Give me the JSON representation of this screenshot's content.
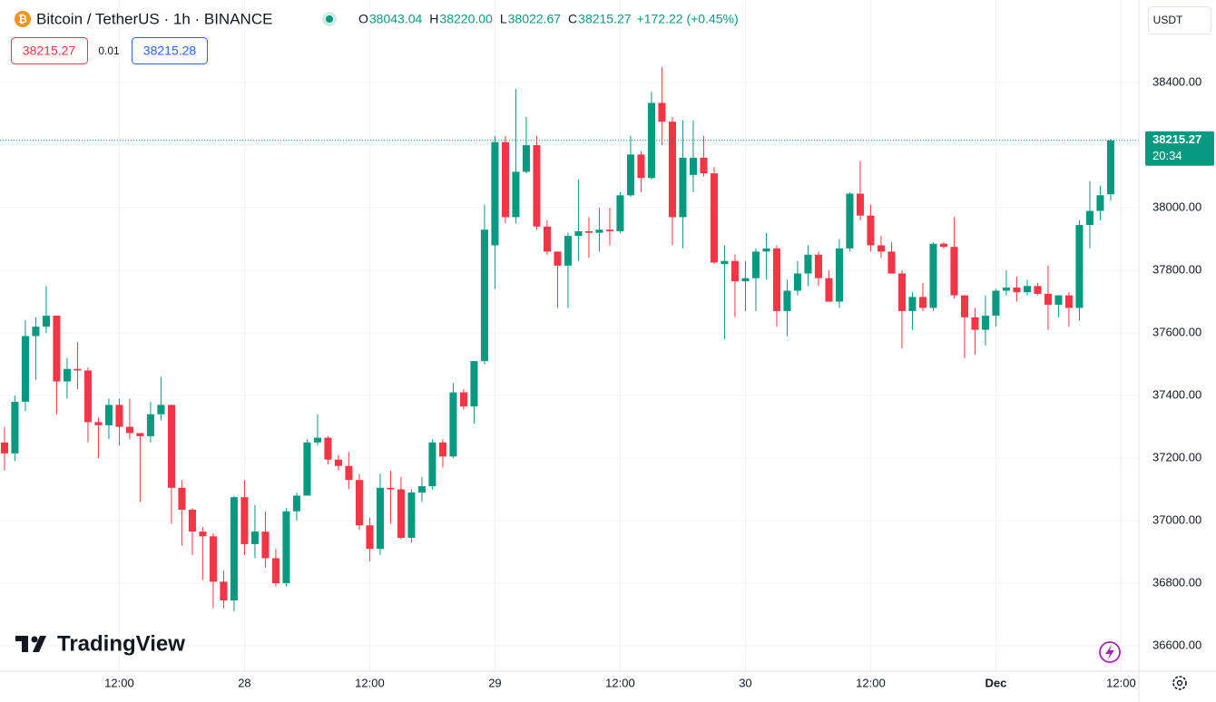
{
  "chart_data": {
    "type": "candlestick",
    "title": "Bitcoin / TetherUS · 1h · BINANCE",
    "legend": [
      {
        "label": "O",
        "value": "38043.04"
      },
      {
        "label": "H",
        "value": "38220.00"
      },
      {
        "label": "L",
        "value": "38022.67"
      },
      {
        "label": "C",
        "value": "38215.27"
      }
    ],
    "change": "+172.22 (+0.45%)",
    "sell_price": "38215.27",
    "spread": "0.01",
    "buy_price": "38215.28",
    "currency": "USDT",
    "last_price": 38215.27,
    "countdown": "20:34",
    "logo": "TradingView",
    "up_color": "#089981",
    "down_color": "#f23645",
    "grid": true,
    "xlim": [
      -0.43,
      108.7
    ],
    "xticks": [
      {
        "value": 11,
        "label": "12:00"
      },
      {
        "value": 23,
        "label": "28"
      },
      {
        "value": 35,
        "label": "12:00"
      },
      {
        "value": 47,
        "label": "29"
      },
      {
        "value": 59,
        "label": "12:00"
      },
      {
        "value": 71,
        "label": "30"
      },
      {
        "value": 83,
        "label": "12:00"
      },
      {
        "value": 95,
        "label": "Dec"
      },
      {
        "value": 107,
        "label": "12:00"
      }
    ],
    "ylim": [
      36519,
      38664
    ],
    "yticks": [
      {
        "value": 36600,
        "label": "36600.00"
      },
      {
        "value": 36800,
        "label": "36800.00"
      },
      {
        "value": 37000,
        "label": "37000.00"
      },
      {
        "value": 37200,
        "label": "37200.00"
      },
      {
        "value": 37400,
        "label": "37400.00"
      },
      {
        "value": 37600,
        "label": "37600.00"
      },
      {
        "value": 37800,
        "label": "37800.00"
      },
      {
        "value": 38000,
        "label": "38000.00"
      },
      {
        "value": 38200,
        "label": "38200.00"
      },
      {
        "value": 38400,
        "label": "38400.00"
      }
    ],
    "open": [
      37250,
      37215,
      37380,
      37590,
      37620,
      37655,
      37445,
      37485,
      37480,
      37315,
      37305,
      37370,
      37300,
      37280,
      37270,
      37340,
      37370,
      37105,
      37035,
      36965,
      36950,
      36805,
      36745,
      37075,
      36925,
      36965,
      36880,
      36800,
      37030,
      37080,
      37250,
      37265,
      37195,
      37175,
      37130,
      36985,
      36910,
      37105,
      37100,
      36945,
      37090,
      37110,
      37250,
      37205,
      37410,
      37365,
      37510,
      37880,
      38210,
      37970,
      38115,
      38200,
      37940,
      37860,
      37815,
      37910,
      37925,
      37920,
      37930,
      37925,
      38040,
      38170,
      38095,
      38335,
      38275,
      37970,
      38105,
      38160,
      38110,
      37820,
      37830,
      37765,
      37775,
      37860,
      37870,
      37670,
      37735,
      37790,
      37850,
      37775,
      37700,
      37870,
      38045,
      37975,
      37880,
      37860,
      37790,
      37670,
      37715,
      37680,
      37885,
      37875,
      37720,
      37650,
      37610,
      37655,
      37735,
      37745,
      37730,
      37750,
      37725,
      37690,
      37720,
      37680,
      37945,
      37990,
      38043.04
    ],
    "high": [
      37300,
      37400,
      37640,
      37650,
      37750,
      37655,
      37520,
      37570,
      37490,
      37330,
      37390,
      37390,
      37390,
      37280,
      37380,
      37460,
      37370,
      37130,
      37040,
      36980,
      36960,
      36840,
      37080,
      37130,
      37050,
      37030,
      36910,
      37040,
      37090,
      37260,
      37340,
      37270,
      37210,
      37220,
      37150,
      37010,
      37150,
      37160,
      37140,
      37100,
      37140,
      37260,
      37260,
      37440,
      37420,
      37510,
      38010,
      38230,
      38230,
      38380,
      38290,
      38230,
      37960,
      37860,
      37920,
      38090,
      37970,
      38000,
      38000,
      38050,
      38230,
      38180,
      38370,
      38450,
      38290,
      38280,
      38280,
      38230,
      38130,
      37880,
      37850,
      37830,
      37870,
      37920,
      37880,
      37770,
      37830,
      37880,
      37860,
      37800,
      37900,
      38050,
      38150,
      38010,
      37910,
      37890,
      37800,
      37730,
      37760,
      37890,
      37890,
      37970,
      37720,
      37680,
      37720,
      37740,
      37800,
      37780,
      37770,
      37760,
      37815,
      37720,
      37730,
      37960,
      38085,
      38070,
      38220
    ],
    "low": [
      37160,
      37190,
      37350,
      37450,
      37600,
      37340,
      37390,
      37420,
      37250,
      37200,
      37260,
      37240,
      37260,
      37060,
      37250,
      37320,
      36990,
      36920,
      36890,
      36810,
      36720,
      36720,
      36710,
      36890,
      36880,
      36850,
      36790,
      36790,
      37000,
      37080,
      37240,
      37180,
      37160,
      37100,
      36970,
      36870,
      36890,
      36990,
      36940,
      36930,
      37060,
      37100,
      37170,
      37200,
      37355,
      37310,
      37500,
      37740,
      37950,
      37950,
      38110,
      37930,
      37850,
      37680,
      37680,
      37830,
      37840,
      37860,
      37880,
      37920,
      38035,
      38050,
      38090,
      38200,
      37880,
      37870,
      38050,
      38100,
      37820,
      37580,
      37650,
      37670,
      37670,
      37770,
      37620,
      37590,
      37720,
      37750,
      37750,
      37700,
      37680,
      37860,
      37960,
      37860,
      37840,
      37790,
      37550,
      37610,
      37670,
      37670,
      37870,
      37710,
      37520,
      37530,
      37560,
      37620,
      37720,
      37700,
      37720,
      37720,
      37610,
      37650,
      37620,
      37640,
      37870,
      37960,
      38022.67
    ],
    "close": [
      37215,
      37380,
      37590,
      37620,
      37655,
      37445,
      37485,
      37480,
      37315,
      37305,
      37370,
      37300,
      37280,
      37270,
      37340,
      37370,
      37105,
      37035,
      36965,
      36950,
      36805,
      36745,
      37075,
      36925,
      36965,
      36880,
      36800,
      37030,
      37080,
      37250,
      37265,
      37195,
      37175,
      37130,
      36985,
      36910,
      37105,
      37100,
      36945,
      37090,
      37110,
      37250,
      37205,
      37410,
      37365,
      37510,
      37930,
      38210,
      37970,
      38115,
      38200,
      37940,
      37860,
      37815,
      37910,
      37925,
      37920,
      37930,
      37925,
      38040,
      38170,
      38095,
      38335,
      38275,
      37970,
      38160,
      38160,
      38110,
      37825,
      37830,
      37765,
      37775,
      37860,
      37870,
      37670,
      37735,
      37790,
      37850,
      37775,
      37700,
      37870,
      38045,
      37975,
      37880,
      37860,
      37790,
      37670,
      37715,
      37680,
      37885,
      37875,
      37720,
      37650,
      37610,
      37655,
      37735,
      37745,
      37730,
      37750,
      37725,
      37690,
      37720,
      37680,
      37945,
      37990,
      38040,
      38215.27
    ]
  }
}
